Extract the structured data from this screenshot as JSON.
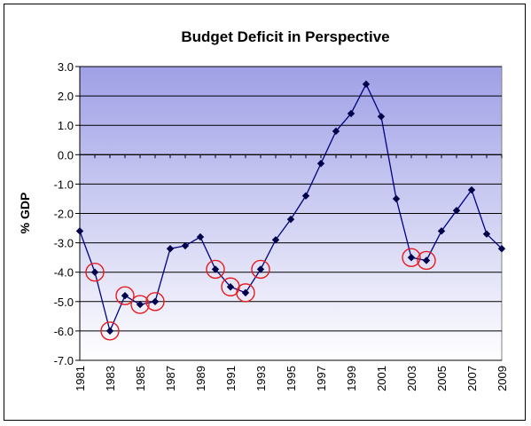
{
  "chart_data": {
    "type": "line",
    "title": "Budget Deficit in Perspective",
    "xlabel": "",
    "ylabel": "% GDP",
    "x": [
      1981,
      1982,
      1983,
      1984,
      1985,
      1986,
      1987,
      1988,
      1989,
      1990,
      1991,
      1992,
      1993,
      1994,
      1995,
      1996,
      1997,
      1998,
      1999,
      2000,
      2001,
      2002,
      2003,
      2004,
      2005,
      2006,
      2007,
      2008,
      2009
    ],
    "values": [
      -2.6,
      -4.0,
      -6.0,
      -4.8,
      -5.1,
      -5.0,
      -3.2,
      -3.1,
      -2.8,
      -3.9,
      -4.5,
      -4.7,
      -3.9,
      -2.9,
      -2.2,
      -1.4,
      -0.3,
      0.8,
      1.4,
      2.4,
      1.3,
      -1.5,
      -3.5,
      -3.6,
      -2.6,
      -1.9,
      -1.2,
      -2.7,
      -3.2
    ],
    "highlighted_years": [
      1982,
      1983,
      1984,
      1985,
      1986,
      1990,
      1991,
      1992,
      1993,
      2003,
      2004
    ],
    "x_tick_labels": [
      "1981",
      "1983",
      "1985",
      "1987",
      "1989",
      "1991",
      "1993",
      "1995",
      "1997",
      "1999",
      "2001",
      "2003",
      "2005",
      "2007",
      "2009"
    ],
    "y_tick_labels": [
      "3.0",
      "2.0",
      "1.0",
      "0.0",
      "-1.0",
      "-2.0",
      "-3.0",
      "-4.0",
      "-5.0",
      "-6.0",
      "-7.0"
    ],
    "ylim": [
      -7.0,
      3.0
    ],
    "grid": true,
    "legend": "none",
    "colors": {
      "line": "#000080",
      "marker": "#00004a",
      "highlight_circle": "#e8191e",
      "plot_bg_top": "#9fa0e6",
      "plot_bg_bottom": "#ffffff"
    }
  }
}
